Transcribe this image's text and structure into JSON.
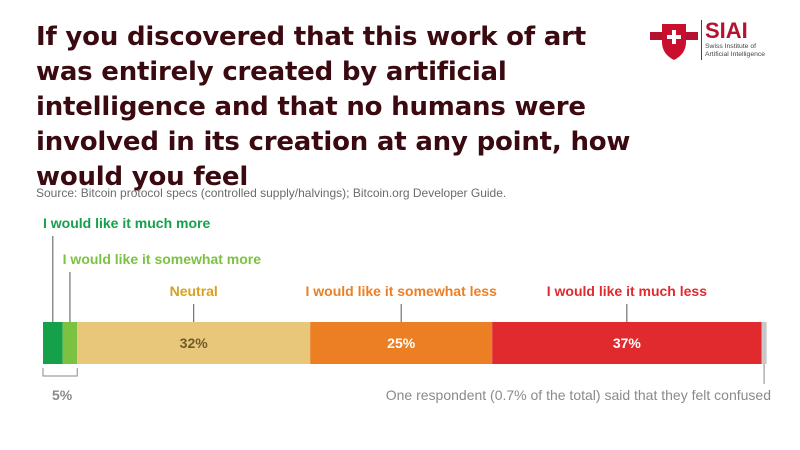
{
  "header": {
    "title": "If you discovered that this work of art was entirely created by artificial intelligence and that no humans were involved in its creation at any point, how would you feel",
    "source": "Source: Bitcoin protocol specs (controlled supply/halvings); Bitcoin.org Developer Guide."
  },
  "logo": {
    "name": "SIAI",
    "subtitle": "Swiss Institute of Artificial Intelligence"
  },
  "chart_data": {
    "type": "bar",
    "orientation": "horizontal-stacked",
    "xlim": [
      0,
      100
    ],
    "segments": [
      {
        "name": "I would like it much more",
        "value": 2.7,
        "color": "#15a04a"
      },
      {
        "name": "I would like it somewhat more",
        "value": 2.0,
        "color": "#7cc242"
      },
      {
        "name": "Neutral",
        "value": 32,
        "color": "#e8c77a",
        "label_color": "#d8a01e",
        "value_label": "32%",
        "value_label_color": "#6e5a2c"
      },
      {
        "name": "I would like it somewhat less",
        "value": 25,
        "color": "#ec7f23",
        "label_color": "#ec7f23",
        "value_label": "25%",
        "value_label_color": "#ffffff"
      },
      {
        "name": "I would like it much less",
        "value": 37,
        "color": "#e02a2e",
        "label_color": "#e02a2e",
        "value_label": "37%",
        "value_label_color": "#ffffff"
      },
      {
        "name": "",
        "value": 0.7,
        "color": "#c8c8c8"
      }
    ],
    "bracket_label": "5%",
    "annotation": "One respondent (0.7% of the total) said that they felt confused"
  }
}
